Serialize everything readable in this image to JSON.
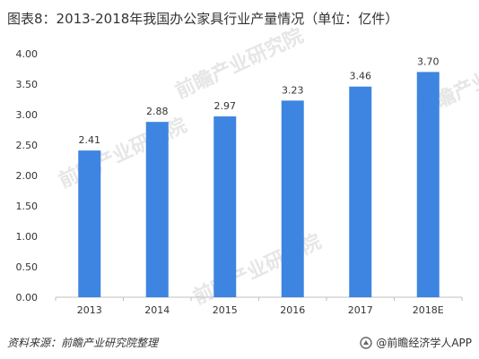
{
  "title": "图表8：2013-2018年我国办公家具行业产量情况（单位：亿件）",
  "footer": {
    "source": "资料来源：前瞻产业研究院整理",
    "brand": "@前瞻经济学人APP"
  },
  "watermark": "前瞻产业研究院",
  "colors": {
    "bar": "#3d85e0",
    "axis": "#bfbfbf",
    "text": "#333333"
  },
  "chart_data": {
    "type": "bar",
    "categories": [
      "2013",
      "2014",
      "2015",
      "2016",
      "2017",
      "2018E"
    ],
    "values": [
      2.41,
      2.88,
      2.97,
      3.23,
      3.46,
      3.7
    ],
    "value_labels": [
      "2.41",
      "2.88",
      "2.97",
      "3.23",
      "3.46",
      "3.70"
    ],
    "yticks": [
      "0.00",
      "0.50",
      "1.00",
      "1.50",
      "2.00",
      "2.50",
      "3.00",
      "3.50",
      "4.00"
    ],
    "ylim": [
      0,
      4
    ],
    "grid": false,
    "legend": "none"
  }
}
